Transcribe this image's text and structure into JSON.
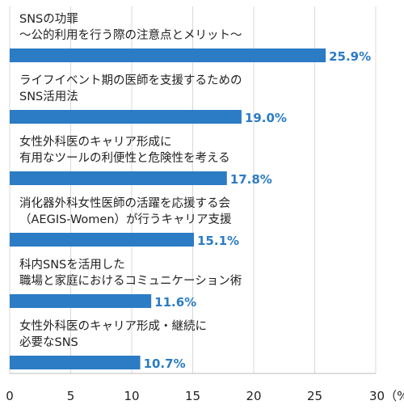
{
  "chart_data": {
    "type": "bar",
    "orientation": "horizontal",
    "categories": [
      [
        "SNSの功罪",
        "～公的利用を行う際の注意点とメリット～"
      ],
      [
        "ライフイベント期の医師を支援するための",
        "SNS活用法"
      ],
      [
        "女性外科医のキャリア形成に",
        "有用なツールの利便性と危険性を考える"
      ],
      [
        "消化器外科女性医師の活躍を応援する会",
        "（AEGIS-Women）が行うキャリア支援"
      ],
      [
        "科内SNSを活用した",
        "職場と家庭におけるコミュニケーション術"
      ],
      [
        "女性外科医のキャリア形成・継続に",
        "必要なSNS"
      ]
    ],
    "values": [
      25.9,
      19.0,
      17.8,
      15.1,
      11.6,
      10.7
    ],
    "value_labels": [
      "25.9%",
      "19.0%",
      "17.8%",
      "15.1%",
      "11.6%",
      "10.7%"
    ],
    "xlim": [
      0,
      30
    ],
    "x_ticks": [
      "0",
      "5",
      "10",
      "15",
      "20",
      "25",
      "30（%）"
    ],
    "x_tick_values": [
      0,
      5,
      10,
      15,
      20,
      25,
      30
    ],
    "grid": true,
    "bar_color": "#2b7cc4",
    "label_color": "#2b7cc4"
  }
}
